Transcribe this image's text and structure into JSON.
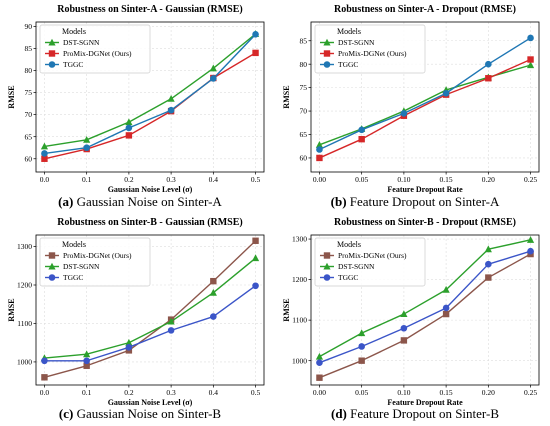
{
  "chart_data": [
    {
      "type": "line",
      "title": "Robustness on Sinter-A - Gaussian (RMSE)",
      "xlabel": "Gaussian Noise Level (σ)",
      "ylabel": "RMSE",
      "x": [
        0.0,
        0.1,
        0.2,
        0.3,
        0.4,
        0.5
      ],
      "xticks": [
        "0.0",
        "0.1",
        "0.2",
        "0.3",
        "0.4",
        "0.5"
      ],
      "ylim": [
        57,
        91
      ],
      "yticks": [
        60,
        65,
        70,
        75,
        80,
        85,
        90
      ],
      "legend_title": "Models",
      "legend_position": "top-left",
      "grid": true,
      "series": [
        {
          "name": "DST-SGNN",
          "color": "#2ca02c",
          "marker": "triangle",
          "values": [
            62.8,
            64.3,
            68.3,
            73.6,
            80.5,
            88.3
          ]
        },
        {
          "name": "ProMix-DGNet (Ours)",
          "color": "#d62728",
          "marker": "square",
          "values": [
            60.0,
            62.2,
            65.3,
            70.8,
            78.3,
            84.0
          ]
        },
        {
          "name": "TGGC",
          "color": "#1f77b4",
          "marker": "circle",
          "values": [
            61.2,
            62.5,
            67.0,
            71.0,
            78.2,
            88.2
          ]
        }
      ],
      "caption_letter": "(a)",
      "caption_text": "Gaussian Noise on Sinter-A"
    },
    {
      "type": "line",
      "title": "Robustness on Sinter-A - Dropout (RMSE)",
      "xlabel": "Feature Dropout Rate",
      "ylabel": "RMSE",
      "x": [
        0.0,
        0.05,
        0.1,
        0.15,
        0.2,
        0.25
      ],
      "xticks": [
        "0.00",
        "0.05",
        "0.10",
        "0.15",
        "0.20",
        "0.25"
      ],
      "ylim": [
        57,
        89
      ],
      "yticks": [
        60,
        65,
        70,
        75,
        80,
        85
      ],
      "legend_title": "Models",
      "legend_position": "top-left",
      "grid": true,
      "series": [
        {
          "name": "DST-SGNN",
          "color": "#2ca02c",
          "marker": "triangle",
          "values": [
            62.8,
            66.2,
            70.0,
            74.5,
            77.2,
            79.8
          ]
        },
        {
          "name": "ProMix-DGNet (Ours)",
          "color": "#d62728",
          "marker": "square",
          "values": [
            60.0,
            64.0,
            69.0,
            73.5,
            77.0,
            81.0
          ]
        },
        {
          "name": "TGGC",
          "color": "#1f77b4",
          "marker": "circle",
          "values": [
            61.8,
            66.0,
            69.5,
            73.8,
            80.0,
            85.6
          ]
        }
      ],
      "caption_letter": "(b)",
      "caption_text": "Feature Dropout on Sinter-A"
    },
    {
      "type": "line",
      "title": "Robustness on Sinter-B - Gaussian (RMSE)",
      "xlabel": "Gaussian Noise Level (σ)",
      "ylabel": "RMSE",
      "x": [
        0.0,
        0.1,
        0.2,
        0.3,
        0.4,
        0.5
      ],
      "xticks": [
        "0.0",
        "0.1",
        "0.2",
        "0.3",
        "0.4",
        "0.5"
      ],
      "ylim": [
        940,
        1330
      ],
      "yticks": [
        1000,
        1100,
        1200,
        1300
      ],
      "legend_title": "Models",
      "legend_position": "top-left",
      "grid": true,
      "series": [
        {
          "name": "ProMix-DGNet (Ours)",
          "color": "#8c564b",
          "marker": "square",
          "values": [
            960,
            990,
            1030,
            1110,
            1210,
            1315
          ]
        },
        {
          "name": "DST-SGNN",
          "color": "#2ca02c",
          "marker": "triangle",
          "values": [
            1010,
            1020,
            1050,
            1105,
            1180,
            1270
          ]
        },
        {
          "name": "TGGC",
          "color": "#3b55c8",
          "marker": "circle",
          "values": [
            1003,
            1003,
            1038,
            1082,
            1118,
            1198
          ]
        }
      ],
      "caption_letter": "(c)",
      "caption_text": "Gaussian Noise on Sinter-B"
    },
    {
      "type": "line",
      "title": "Robustness on Sinter-B - Dropout (RMSE)",
      "xlabel": "Feature Dropout Rate",
      "ylabel": "RMSE",
      "x": [
        0.0,
        0.05,
        0.1,
        0.15,
        0.2,
        0.25
      ],
      "xticks": [
        "0.00",
        "0.05",
        "0.10",
        "0.15",
        "0.20",
        "0.25"
      ],
      "ylim": [
        940,
        1310
      ],
      "yticks": [
        1000,
        1100,
        1200,
        1300
      ],
      "legend_title": "Models",
      "legend_position": "top-left",
      "grid": true,
      "series": [
        {
          "name": "ProMix-DGNet (Ours)",
          "color": "#8c564b",
          "marker": "square",
          "values": [
            958,
            1000,
            1050,
            1115,
            1205,
            1263
          ]
        },
        {
          "name": "DST-SGNN",
          "color": "#2ca02c",
          "marker": "triangle",
          "values": [
            1010,
            1068,
            1115,
            1175,
            1275,
            1298
          ]
        },
        {
          "name": "TGGC",
          "color": "#3b55c8",
          "marker": "circle",
          "values": [
            995,
            1035,
            1080,
            1130,
            1238,
            1270
          ]
        }
      ],
      "caption_letter": "(d)",
      "caption_text": "Feature Dropout on Sinter-B"
    }
  ]
}
